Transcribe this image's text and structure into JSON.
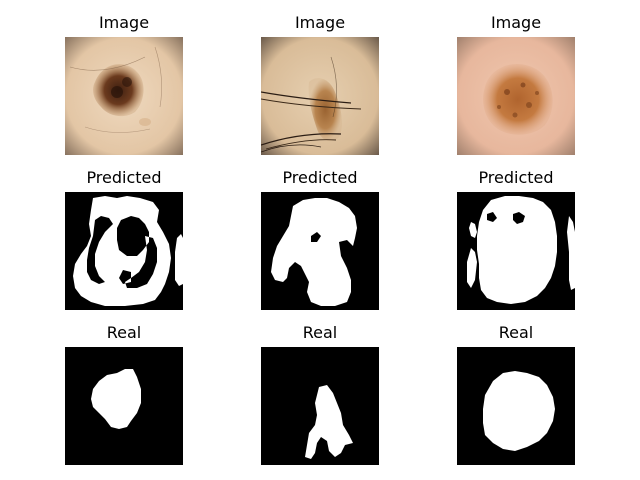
{
  "row_titles": [
    "Image",
    "Predicted",
    "Real"
  ],
  "colors": {
    "mask_background": "#000000",
    "mask_foreground": "#ffffff",
    "skin_light": "#ead2b6",
    "skin_pink": "#eab8a2",
    "lesion_dark": "#6b3a1e",
    "lesion_light": "#b86e34"
  },
  "columns": [
    {
      "image_title": "Image",
      "predicted_title": "Predicted",
      "real_title": "Real"
    },
    {
      "image_title": "Image",
      "predicted_title": "Predicted",
      "real_title": "Real"
    },
    {
      "image_title": "Image",
      "predicted_title": "Predicted",
      "real_title": "Real"
    }
  ]
}
